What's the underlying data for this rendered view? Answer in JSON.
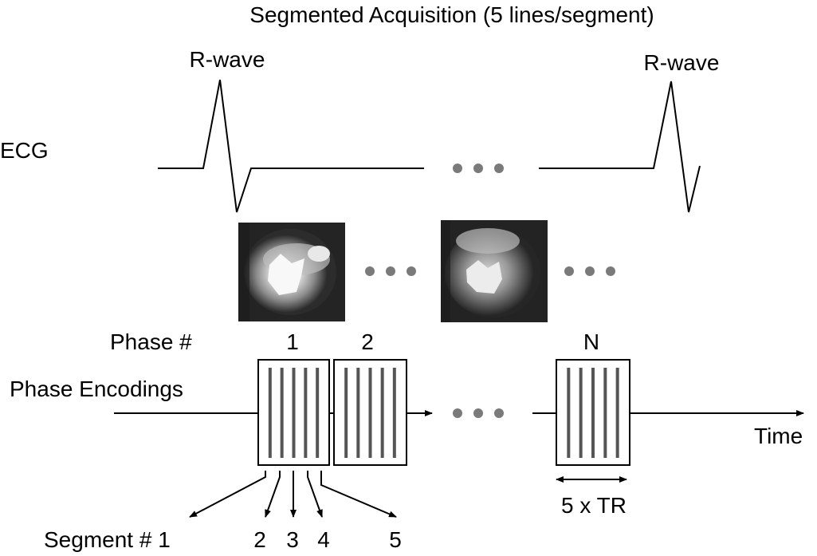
{
  "title": "Segmented Acquisition (5 lines/segment)",
  "ecg": {
    "label": "ECG",
    "r_wave_labels": [
      "R-wave",
      "R-wave"
    ]
  },
  "phase_numbers": {
    "label": "Phase #",
    "values": [
      "1",
      "2",
      "N"
    ]
  },
  "phase_encodings": {
    "label": "Phase Encodings",
    "lines_per_segment": 5
  },
  "time_label": "Time",
  "tr_label": "5 x TR",
  "segments": {
    "first_label": "Segment # 1",
    "labels": [
      "2",
      "3",
      "4",
      "5"
    ]
  },
  "colors": {
    "line": "#000000",
    "encoding_line": "#555555",
    "dot": "#7a7a7a"
  }
}
